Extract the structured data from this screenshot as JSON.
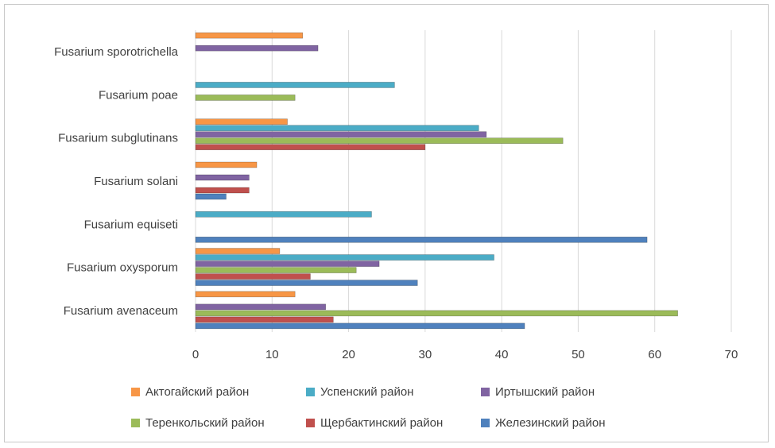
{
  "chart_data": {
    "type": "bar",
    "orientation": "horizontal",
    "title": "",
    "xlabel": "",
    "ylabel": "",
    "xlim": [
      0,
      70
    ],
    "xticks": [
      "0",
      "10",
      "20",
      "30",
      "40",
      "50",
      "60",
      "70"
    ],
    "grid": true,
    "legend_position": "bottom",
    "categories": [
      "Fusarium sporotrichella",
      "Fusarium poae",
      "Fusarium subglutinans",
      "Fusarium solani",
      "Fusarium equiseti",
      "Fusarium oxysporum",
      "Fusarium avenaceum"
    ],
    "series": [
      {
        "name": "Актогайский район",
        "color": "#f79646",
        "values": [
          14,
          0,
          12,
          8,
          0,
          11,
          13
        ]
      },
      {
        "name": "Успенский район",
        "color": "#4bacc6",
        "values": [
          0,
          26,
          37,
          0,
          23,
          39,
          0
        ]
      },
      {
        "name": "Иртышский район",
        "color": "#8064a2",
        "values": [
          16,
          0,
          38,
          7,
          0,
          24,
          17
        ]
      },
      {
        "name": "Теренкольский район",
        "color": "#9bbb59",
        "values": [
          0,
          13,
          48,
          0,
          0,
          21,
          63
        ]
      },
      {
        "name": "Щербактинский район",
        "color": "#c0504d",
        "values": [
          0,
          0,
          30,
          7,
          0,
          15,
          18
        ]
      },
      {
        "name": "Железинский район",
        "color": "#4f81bd",
        "values": [
          0,
          0,
          0,
          4,
          59,
          29,
          43
        ]
      }
    ]
  }
}
